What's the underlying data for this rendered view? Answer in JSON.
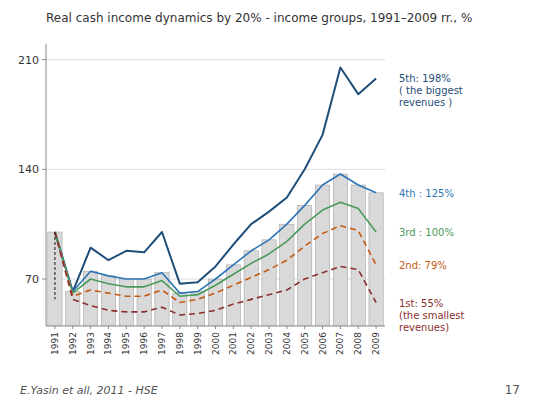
{
  "chart_data": {
    "type": "line",
    "title": "Real cash income dynamics by 20% - income groups, 1991–2009 rr., %",
    "annotations": [
      "E.Yasin et all, 2011 - HSE",
      "17"
    ],
    "categories": [
      1991,
      1992,
      1993,
      1994,
      1995,
      1996,
      1997,
      1998,
      1999,
      2000,
      2001,
      2002,
      2003,
      2004,
      2005,
      2006,
      2007,
      2008,
      2009
    ],
    "series": [
      {
        "type": "bar",
        "color": "#d9d9d9",
        "values": [
          100,
          62,
          75,
          72,
          70,
          70,
          74,
          61,
          62,
          70,
          79,
          88,
          95,
          105,
          117,
          130,
          137,
          130,
          125
        ]
      },
      {
        "type": "line",
        "name": "5th: 198%\n( the biggest\nrevenues )",
        "color": "#1f4e79",
        "line_style": "solid",
        "values": [
          100,
          62,
          90,
          82,
          88,
          87,
          100,
          67,
          68,
          78,
          92,
          105,
          113,
          122,
          140,
          162,
          205,
          188,
          198
        ]
      },
      {
        "type": "line",
        "name": "4th : 125%",
        "color": "#2e75b6",
        "line_style": "solid",
        "values": [
          100,
          62,
          75,
          72,
          70,
          70,
          74,
          61,
          62,
          70,
          79,
          88,
          95,
          105,
          117,
          130,
          137,
          130,
          125
        ]
      },
      {
        "type": "line",
        "name": "3rd : 100%",
        "color": "#4a9a5c",
        "line_style": "solid",
        "values": [
          100,
          61,
          70,
          67,
          65,
          65,
          69,
          59,
          60,
          66,
          73,
          80,
          86,
          94,
          105,
          114,
          119,
          115,
          100
        ]
      },
      {
        "type": "line",
        "name": "2nd: 79%",
        "color": "#c55a11",
        "line_style": "dashed",
        "values": [
          100,
          59,
          63,
          61,
          59,
          59,
          63,
          55,
          57,
          61,
          66,
          71,
          76,
          82,
          91,
          99,
          104,
          101,
          79
        ]
      },
      {
        "type": "line",
        "name": "1st: 55%\n(the smallest\nrevenues)",
        "color": "#8b2e2e",
        "line_style": "dashed",
        "values": [
          100,
          57,
          53,
          50,
          49,
          49,
          52,
          47,
          48,
          50,
          54,
          57,
          60,
          63,
          70,
          74,
          78,
          76,
          55
        ]
      }
    ],
    "drop_line": {
      "category": 1991,
      "values": [
        100,
        57
      ]
    },
    "ylim": [
      40,
      220
    ],
    "yticks": [
      70,
      140,
      210
    ],
    "grid": true
  }
}
